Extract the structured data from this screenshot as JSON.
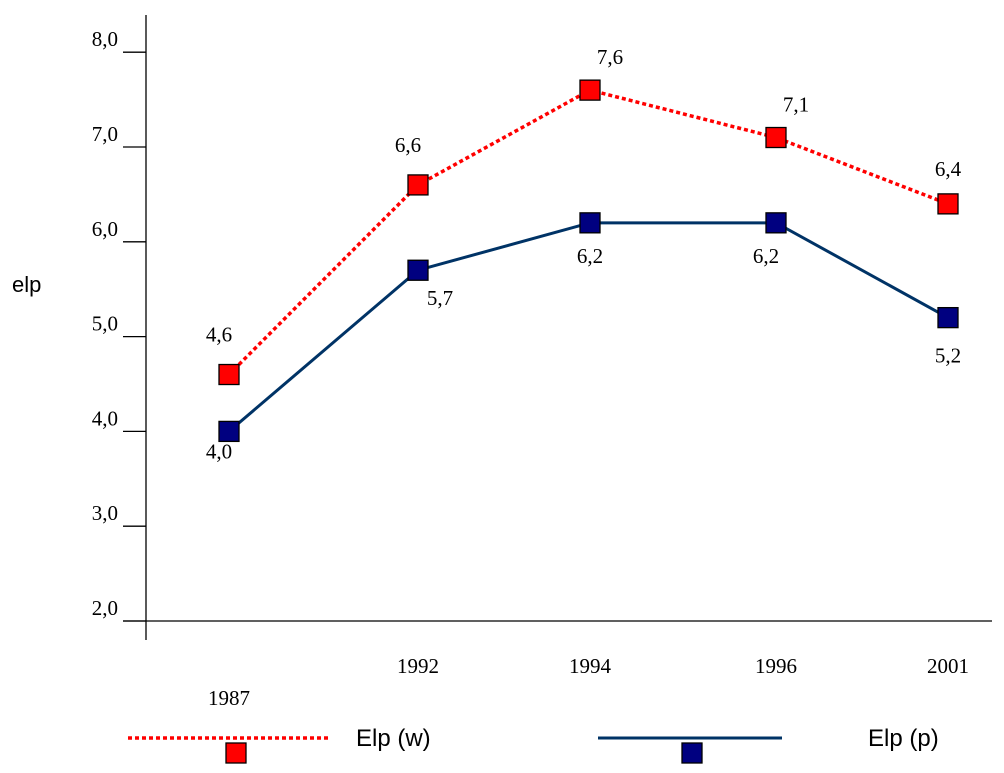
{
  "chart_data": {
    "type": "line",
    "ylabel": "elp",
    "ylim": [
      2.0,
      8.0
    ],
    "yticks": [
      "2,0",
      "3,0",
      "4,0",
      "5,0",
      "6,0",
      "7,0",
      "8,0"
    ],
    "x": [
      "1987",
      "1992",
      "1994",
      "1996",
      "2001"
    ],
    "legend_position": "bottom",
    "series": [
      {
        "name": "Elp (w)",
        "values": [
          4.6,
          6.6,
          7.6,
          7.1,
          6.4
        ],
        "labels": [
          "4,6",
          "6,6",
          "7,6",
          "7,1",
          "6,4"
        ],
        "line_color": "#ff0000",
        "marker_color": "#ff0000",
        "line_style": "dotted"
      },
      {
        "name": "Elp (p)",
        "values": [
          4.0,
          5.7,
          6.2,
          6.2,
          5.2
        ],
        "labels": [
          "4,0",
          "5,7",
          "6,2",
          "6,2",
          "5,2"
        ],
        "line_color": "#003366",
        "marker_color": "#000080",
        "line_style": "solid"
      }
    ]
  }
}
